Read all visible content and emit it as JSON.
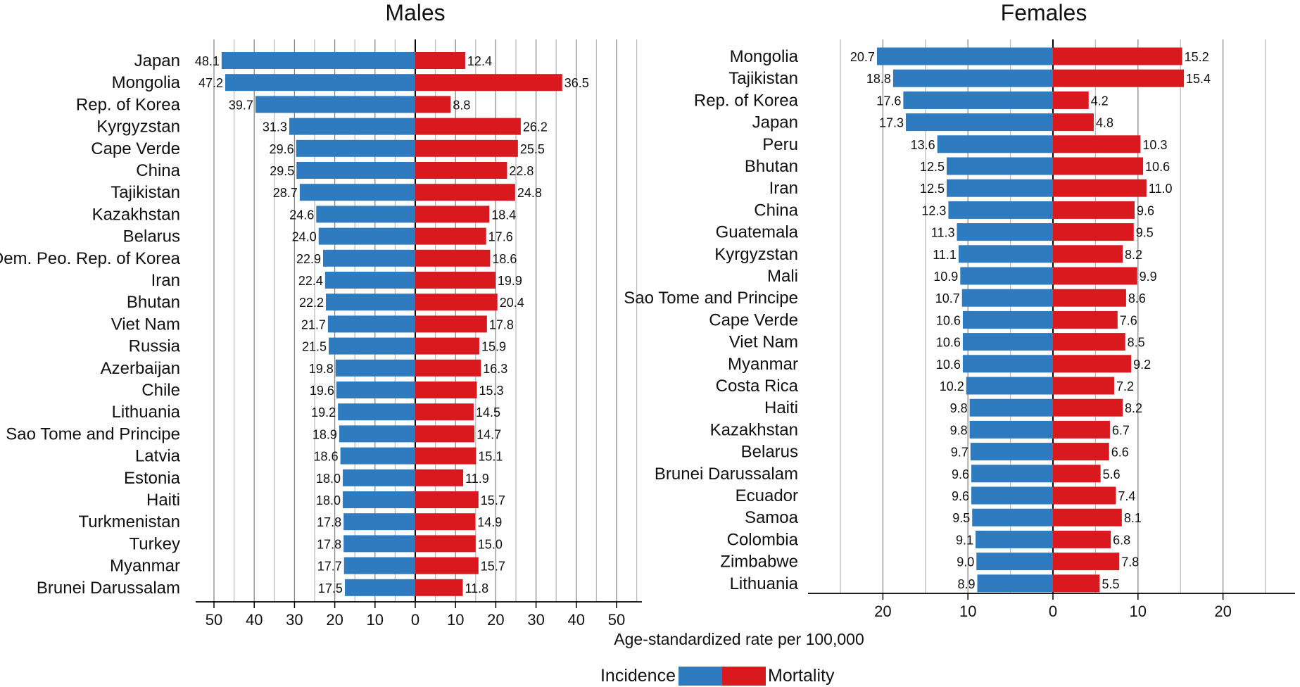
{
  "chart_data": [
    {
      "type": "bar",
      "orientation": "horizontal-diverging",
      "title": "Males",
      "categories": [
        "Japan",
        "Mongolia",
        "Rep. of Korea",
        "Kyrgyzstan",
        "Cape Verde",
        "China",
        "Tajikistan",
        "Kazakhstan",
        "Belarus",
        "Dem. Peo. Rep. of Korea",
        "Iran",
        "Bhutan",
        "Viet Nam",
        "Russia",
        "Azerbaijan",
        "Chile",
        "Lithuania",
        "Sao Tome and Principe",
        "Latvia",
        "Estonia",
        "Haiti",
        "Turkmenistan",
        "Turkey",
        "Myanmar",
        "Brunei Darussalam"
      ],
      "series": [
        {
          "name": "Incidence",
          "color": "#2e7bc0",
          "values": [
            48.1,
            47.2,
            39.7,
            31.3,
            29.6,
            29.5,
            28.7,
            24.6,
            24.0,
            22.9,
            22.4,
            22.2,
            21.7,
            21.5,
            19.8,
            19.6,
            19.2,
            18.9,
            18.6,
            18.0,
            18.0,
            17.8,
            17.8,
            17.7,
            17.5
          ]
        },
        {
          "name": "Mortality",
          "color": "#d9191e",
          "values": [
            12.4,
            36.5,
            8.8,
            26.2,
            25.5,
            22.8,
            24.8,
            18.4,
            17.6,
            18.6,
            19.9,
            20.4,
            17.8,
            15.9,
            16.3,
            15.3,
            14.5,
            14.7,
            15.1,
            11.9,
            15.7,
            14.9,
            15.0,
            15.7,
            11.8
          ]
        }
      ],
      "value_labels": {
        "Incidence": [
          "48.1",
          "47.2",
          "39.7",
          "31.3",
          "29.6",
          "29.5",
          "28.7",
          "24.6",
          "24.0",
          "22.9",
          "22.4",
          "22.2",
          "21.7",
          "21.5",
          "19.8",
          "19.6",
          "19.2",
          "18.9",
          "18.6",
          "18.0",
          "18.0",
          "17.8",
          "17.8",
          "17.7",
          "17.5"
        ],
        "Mortality": [
          "12.4",
          "36.5",
          "8.8",
          "26.2",
          "25.5",
          "22.8",
          "24.8",
          "18.4",
          "17.6",
          "18.6",
          "19.9",
          "20.4",
          "17.8",
          "15.9",
          "16.3",
          "15.3",
          "14.5",
          "14.7",
          "15.1",
          "11.9",
          "15.7",
          "14.9",
          "15.0",
          "15.7",
          "11.8"
        ]
      },
      "xlim": [
        -55,
        55
      ],
      "ticks": [
        -50,
        -40,
        -30,
        -20,
        -10,
        0,
        10,
        20,
        30,
        40,
        50
      ],
      "tick_labels": [
        "50",
        "40",
        "30",
        "20",
        "10",
        "0",
        "10",
        "20",
        "30",
        "40",
        "50"
      ],
      "grid": true
    },
    {
      "type": "bar",
      "orientation": "horizontal-diverging",
      "title": "Females",
      "categories": [
        "Mongolia",
        "Tajikistan",
        "Rep. of Korea",
        "Japan",
        "Peru",
        "Bhutan",
        "Iran",
        "China",
        "Guatemala",
        "Kyrgyzstan",
        "Mali",
        "Sao Tome and Principe",
        "Cape Verde",
        "Viet Nam",
        "Myanmar",
        "Costa Rica",
        "Haiti",
        "Kazakhstan",
        "Belarus",
        "Brunei Darussalam",
        "Ecuador",
        "Samoa",
        "Colombia",
        "Zimbabwe",
        "Lithuania"
      ],
      "series": [
        {
          "name": "Incidence",
          "color": "#2e7bc0",
          "values": [
            20.7,
            18.8,
            17.6,
            17.3,
            13.6,
            12.5,
            12.5,
            12.3,
            11.3,
            11.1,
            10.9,
            10.7,
            10.6,
            10.6,
            10.6,
            10.2,
            9.8,
            9.8,
            9.7,
            9.6,
            9.6,
            9.5,
            9.1,
            9.0,
            8.9
          ]
        },
        {
          "name": "Mortality",
          "color": "#d9191e",
          "values": [
            15.2,
            15.4,
            4.2,
            4.8,
            10.3,
            10.6,
            11.0,
            9.6,
            9.5,
            8.2,
            9.9,
            8.6,
            7.6,
            8.5,
            9.2,
            7.2,
            8.2,
            6.7,
            6.6,
            5.6,
            7.4,
            8.1,
            6.8,
            7.8,
            5.5
          ]
        }
      ],
      "value_labels": {
        "Incidence": [
          "20.7",
          "18.8",
          "17.6",
          "17.3",
          "13.6",
          "12.5",
          "12.5",
          "12.3",
          "11.3",
          "11.1",
          "10.9",
          "10.7",
          "10.6",
          "10.6",
          "10.6",
          "10.2",
          "9.8",
          "9.8",
          "9.7",
          "9.6",
          "9.6",
          "9.5",
          "9.1",
          "9.0",
          "8.9"
        ],
        "Mortality": [
          "15.2",
          "15.4",
          "4.2",
          "4.8",
          "10.3",
          "10.6",
          "11.0",
          "9.6",
          "9.5",
          "8.2",
          "9.9",
          "8.6",
          "7.6",
          "8.5",
          "9.2",
          "7.2",
          "8.2",
          "6.7",
          "6.6",
          "5.6",
          "7.4",
          "8.1",
          "6.8",
          "7.8",
          "5.5"
        ]
      },
      "xlim": [
        -25,
        25
      ],
      "ticks": [
        -20,
        -10,
        0,
        10,
        20
      ],
      "tick_labels": [
        "20",
        "10",
        "0",
        "10",
        "20"
      ],
      "grid": true
    }
  ],
  "xlabel": "Age-standardized rate per 100,000",
  "legend": {
    "placement": "bottom-center",
    "left_label": "Incidence",
    "right_label": "Mortality"
  }
}
